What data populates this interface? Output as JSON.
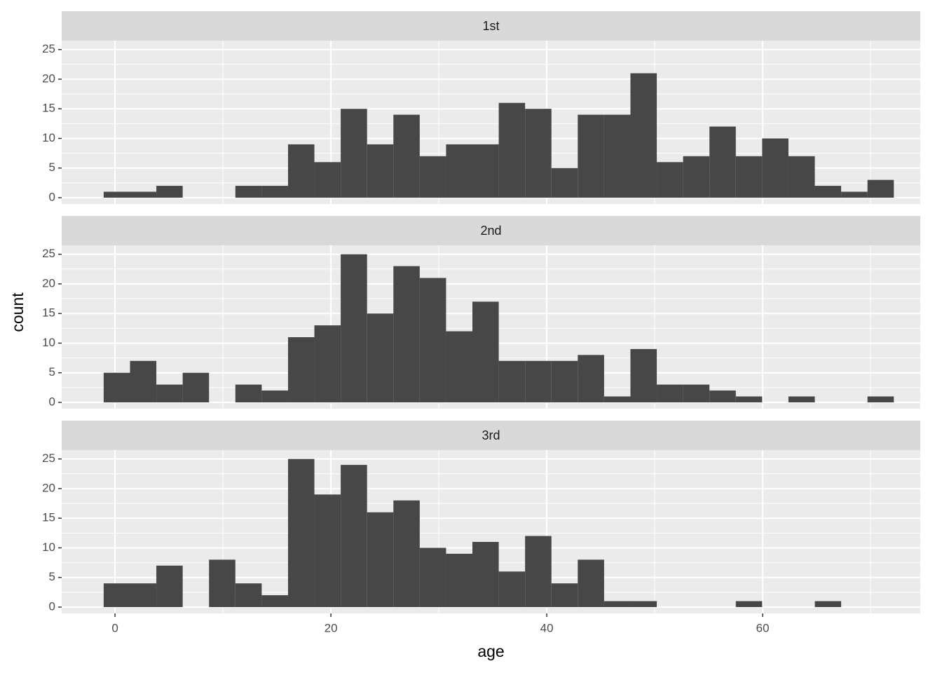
{
  "chart_data": [
    {
      "type": "histogram",
      "title": "1st",
      "bins": [
        -1.05,
        1.39,
        3.83,
        6.27,
        8.71,
        11.15,
        13.59,
        16.03,
        18.47,
        20.91,
        23.35,
        25.79,
        28.23,
        30.67,
        33.11,
        35.55,
        37.99,
        40.43,
        42.87,
        45.31,
        47.75,
        50.19,
        52.63,
        55.07,
        57.51,
        59.95,
        62.39,
        64.83,
        67.27,
        69.71,
        72.15
      ],
      "values": [
        1,
        1,
        2,
        0,
        0,
        2,
        2,
        9,
        6,
        15,
        9,
        14,
        7,
        9,
        9,
        16,
        15,
        5,
        14,
        14,
        21,
        6,
        7,
        12,
        7,
        10,
        7,
        2,
        1,
        3
      ],
      "color": "#474747",
      "xlim": [
        -4.94,
        74.6
      ],
      "xticks": [
        0,
        20,
        40,
        60
      ],
      "xminorticks": [
        10,
        30,
        50,
        70
      ],
      "ylim": [
        -1.07,
        26.5
      ],
      "yticks": [
        0,
        5,
        10,
        15,
        20,
        25
      ],
      "yminorticks": [
        2.5,
        7.5,
        12.5,
        17.5,
        22.5
      ],
      "grid": true
    },
    {
      "type": "histogram",
      "title": "2nd",
      "ylabel": "count",
      "bins": [
        -1.05,
        1.39,
        3.83,
        6.27,
        8.71,
        11.15,
        13.59,
        16.03,
        18.47,
        20.91,
        23.35,
        25.79,
        28.23,
        30.67,
        33.11,
        35.55,
        37.99,
        40.43,
        42.87,
        45.31,
        47.75,
        50.19,
        52.63,
        55.07,
        57.51,
        59.95,
        62.39,
        64.83,
        67.27,
        69.71,
        72.15
      ],
      "values": [
        5,
        7,
        3,
        5,
        0,
        3,
        2,
        11,
        13,
        25,
        15,
        23,
        21,
        12,
        17,
        7,
        7,
        7,
        8,
        1,
        9,
        3,
        3,
        2,
        1,
        0,
        1,
        0,
        0,
        1
      ],
      "color": "#474747",
      "xlim": [
        -4.94,
        74.6
      ],
      "xticks": [
        0,
        20,
        40,
        60
      ],
      "xminorticks": [
        10,
        30,
        50,
        70
      ],
      "ylim": [
        -1.07,
        26.5
      ],
      "yticks": [
        0,
        5,
        10,
        15,
        20,
        25
      ],
      "yminorticks": [
        2.5,
        7.5,
        12.5,
        17.5,
        22.5
      ],
      "grid": true
    },
    {
      "type": "histogram",
      "title": "3rd",
      "xlabel": "age",
      "bins": [
        -1.05,
        1.39,
        3.83,
        6.27,
        8.71,
        11.15,
        13.59,
        16.03,
        18.47,
        20.91,
        23.35,
        25.79,
        28.23,
        30.67,
        33.11,
        35.55,
        37.99,
        40.43,
        42.87,
        45.31,
        47.75,
        50.19,
        52.63,
        55.07,
        57.51,
        59.95,
        62.39,
        64.83,
        67.27,
        69.71,
        72.15
      ],
      "values": [
        4,
        4,
        7,
        0,
        8,
        4,
        2,
        25,
        19,
        24,
        16,
        18,
        10,
        9,
        11,
        6,
        12,
        4,
        8,
        1,
        1,
        0,
        0,
        0,
        1,
        0,
        0,
        1,
        0,
        0
      ],
      "color": "#474747",
      "xlim": [
        -4.94,
        74.6
      ],
      "xticks": [
        0,
        20,
        40,
        60
      ],
      "xminorticks": [
        10,
        30,
        50,
        70
      ],
      "ylim": [
        -1.07,
        26.5
      ],
      "yticks": [
        0,
        5,
        10,
        15,
        20,
        25
      ],
      "yminorticks": [
        2.5,
        7.5,
        12.5,
        17.5,
        22.5
      ],
      "grid": true
    }
  ]
}
